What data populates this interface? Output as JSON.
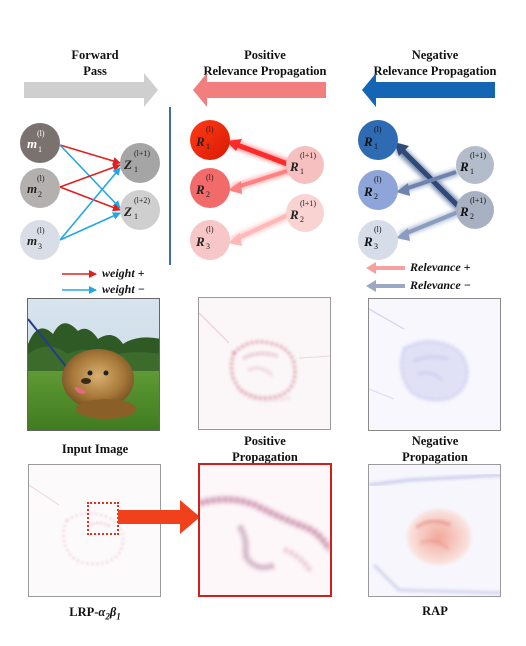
{
  "headers": {
    "forward": "Forward\nPass",
    "positive": "Positive\nRelevance Propagation",
    "negative": "Negative\nRelevance Propagation"
  },
  "colors": {
    "forward_arrow": "#cfcfcf",
    "positive_arrow": "#f27e7e",
    "negative_arrow": "#1565b5",
    "weight_pos": "#e02020",
    "weight_neg": "#22a8e0",
    "relevance_pos": "#f6a0a0",
    "relevance_neg": "#9aa8c4"
  },
  "legend": {
    "weight_pos": "weight +",
    "weight_neg": "weight −",
    "relevance_pos": "Relevance +",
    "relevance_neg": "Relevance −"
  },
  "captions": {
    "input": "Input Image",
    "positive": "Positive\nPropagation",
    "negative": "Negative\nPropagation",
    "lrp_prefix": "LRP-",
    "rap": "RAP"
  }
}
